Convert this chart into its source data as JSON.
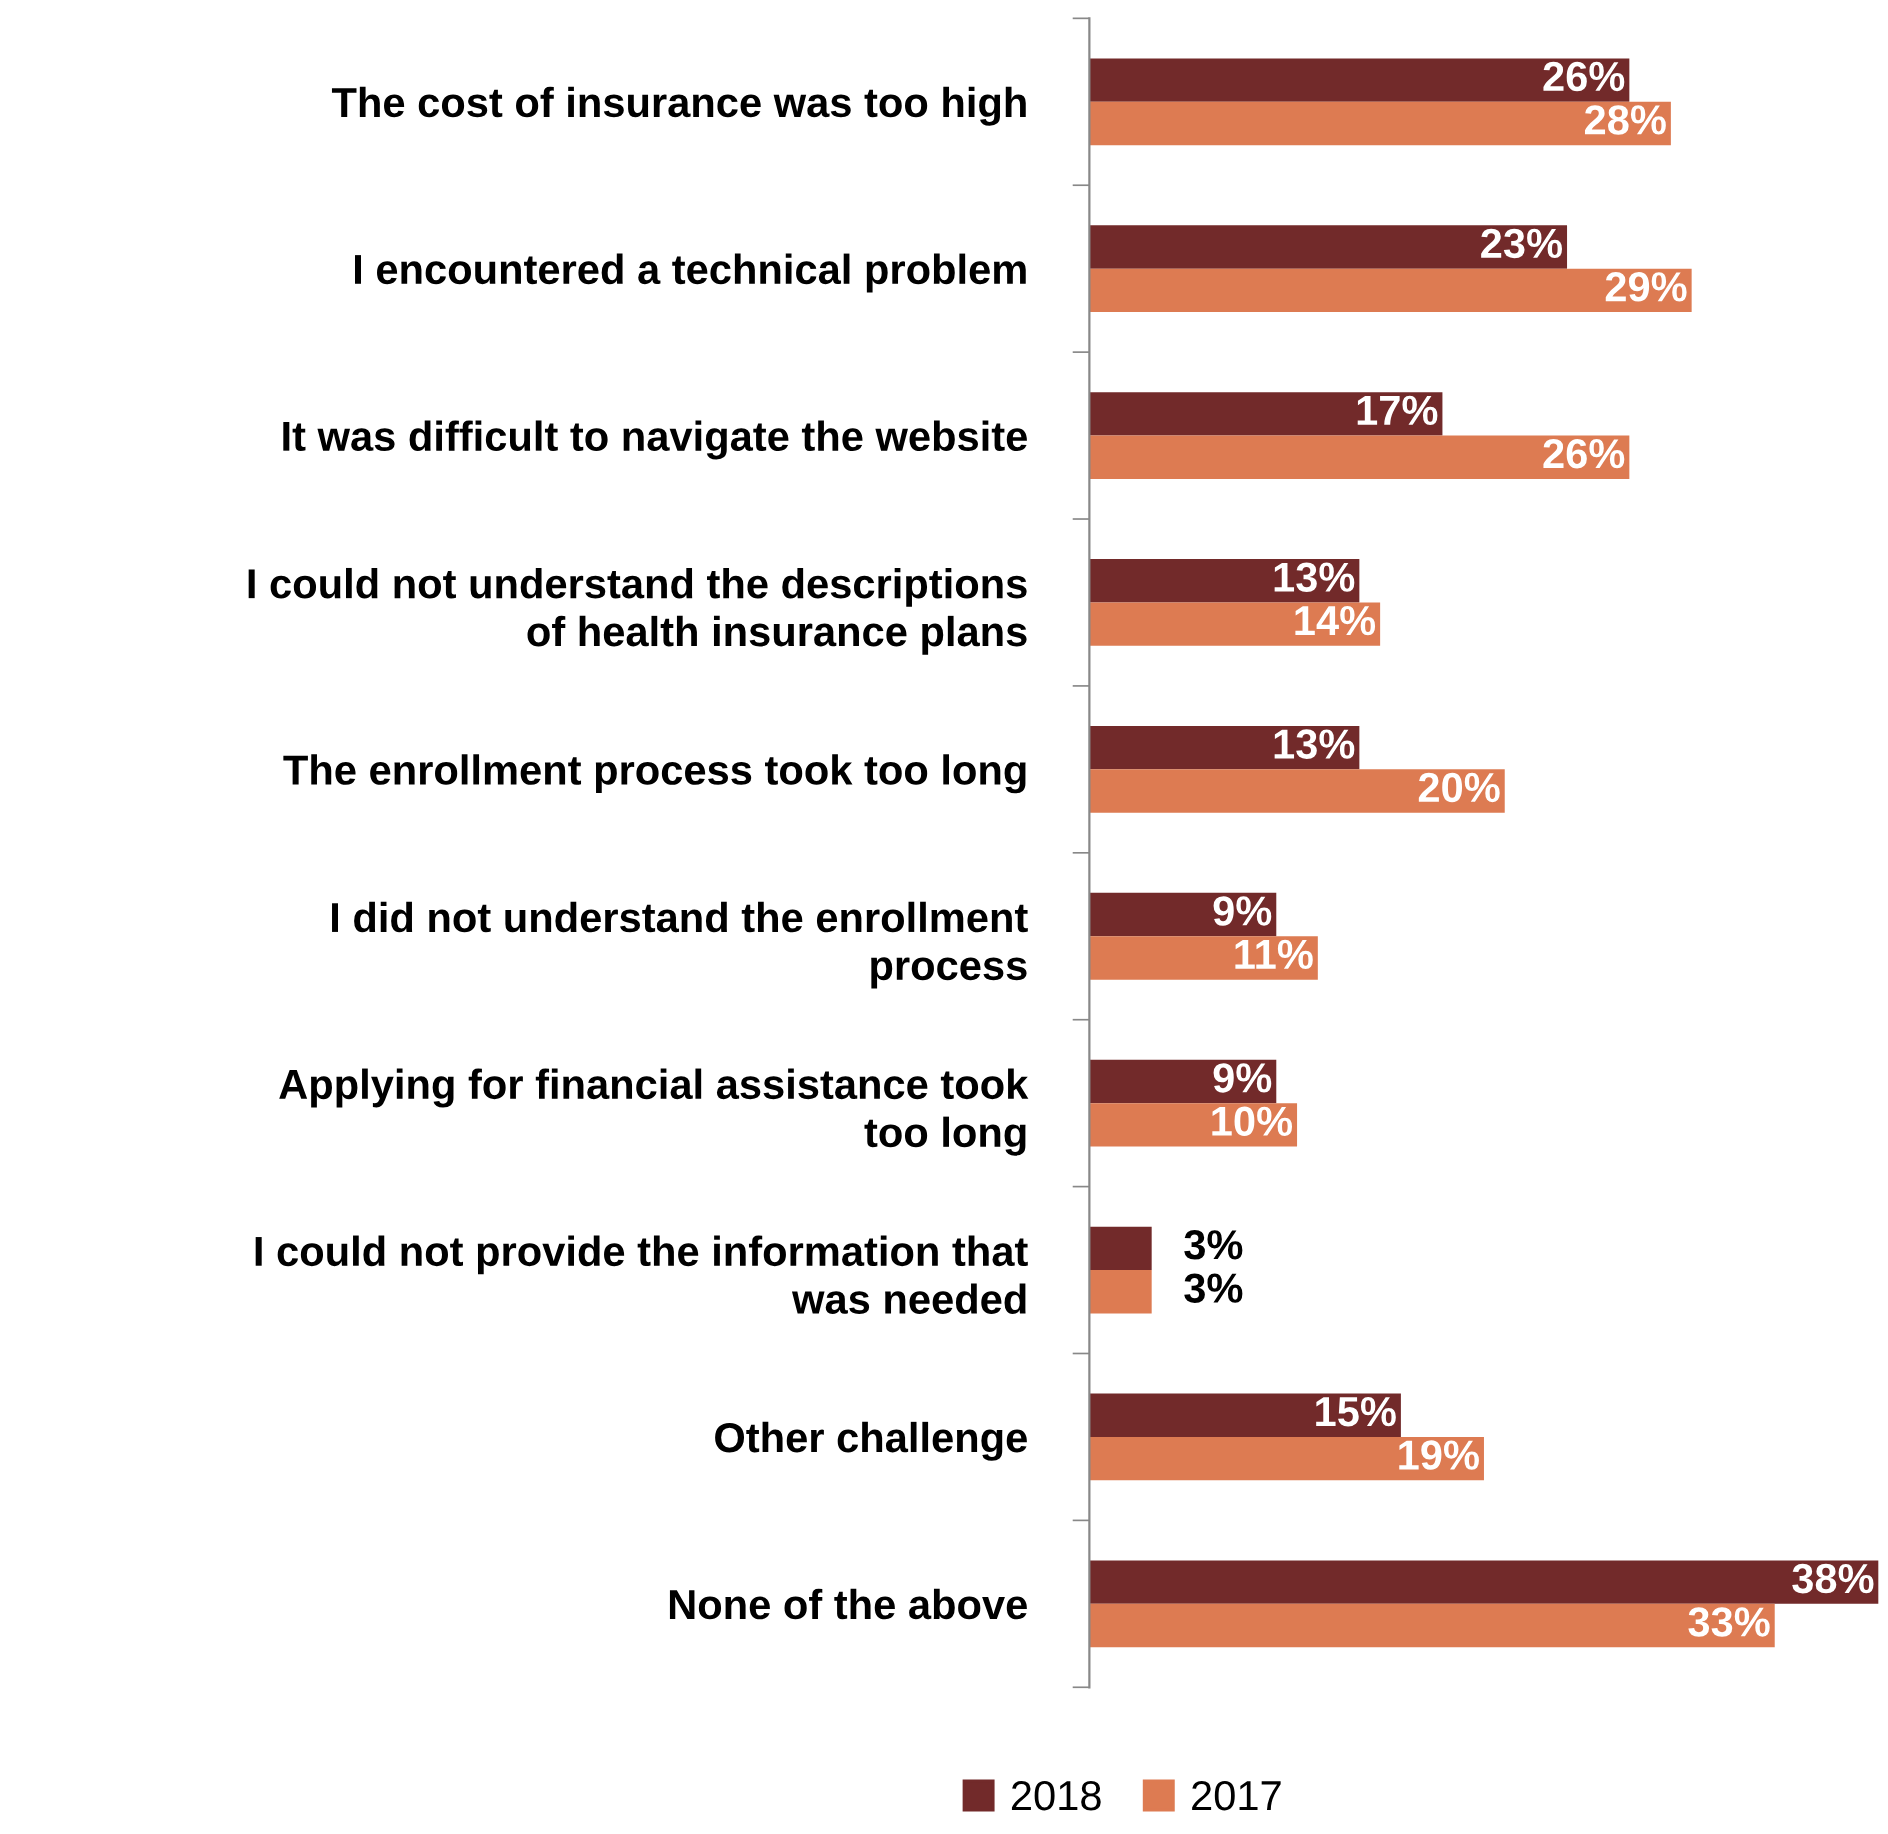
{
  "chart_data": {
    "type": "bar",
    "orientation": "horizontal",
    "categories": [
      "The cost of insurance was too high",
      "I encountered a technical problem",
      "It was difficult to navigate the website",
      "I could not understand the descriptions\nof health insurance plans",
      "The enrollment process took too long",
      "I did not understand the enrollment\nprocess",
      "Applying for financial assistance took\ntoo long",
      "I could not provide the information that\nwas needed",
      "Other challenge",
      "None of the above"
    ],
    "series": [
      {
        "name": "2018",
        "color": "#722a2a",
        "values": [
          26,
          23,
          17,
          13,
          13,
          9,
          9,
          3,
          15,
          38
        ],
        "value_labels": [
          "26%",
          "23%",
          "17%",
          "13%",
          "13%",
          "9%",
          "9%",
          "3%",
          "15%",
          "38%"
        ]
      },
      {
        "name": "2017",
        "color": "#dd7b52",
        "values": [
          28,
          29,
          26,
          14,
          20,
          11,
          10,
          3,
          19,
          33
        ],
        "value_labels": [
          "28%",
          "29%",
          "26%",
          "14%",
          "20%",
          "11%",
          "10%",
          "3%",
          "19%",
          "33%"
        ]
      }
    ],
    "legend": "bottom",
    "grid": false,
    "tick_labels": "y"
  }
}
